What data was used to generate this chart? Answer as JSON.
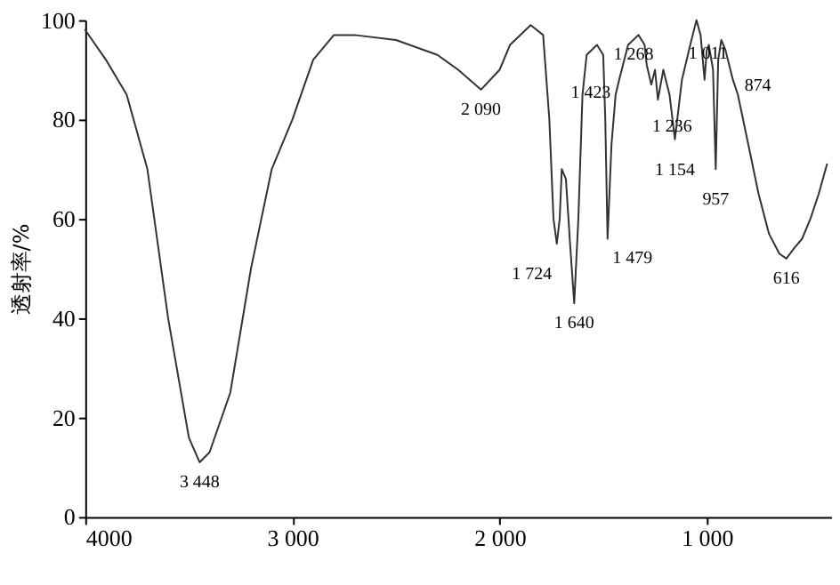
{
  "chart_data": {
    "type": "line",
    "ylabel": "透射率/%",
    "x": [
      4000,
      3900,
      3800,
      3700,
      3600,
      3500,
      3448,
      3400,
      3300,
      3200,
      3100,
      3000,
      2900,
      2800,
      2700,
      2500,
      2300,
      2200,
      2090,
      2000,
      1950,
      1850,
      1790,
      1760,
      1740,
      1724,
      1710,
      1700,
      1680,
      1660,
      1640,
      1620,
      1600,
      1580,
      1530,
      1500,
      1490,
      1479,
      1460,
      1440,
      1423,
      1380,
      1330,
      1300,
      1290,
      1268,
      1250,
      1236,
      1210,
      1180,
      1154,
      1120,
      1080,
      1050,
      1030,
      1011,
      1000,
      990,
      970,
      957,
      945,
      930,
      910,
      874,
      850,
      800,
      750,
      700,
      650,
      616,
      580,
      540,
      500,
      460,
      420
    ],
    "series": [
      {
        "color": "#333333",
        "values": [
          98,
          92,
          85,
          70,
          40,
          16,
          11,
          13,
          25,
          50,
          70,
          80,
          92,
          97,
          97,
          96,
          93,
          90,
          86,
          90,
          95,
          99,
          97,
          80,
          60,
          55,
          60,
          70,
          68,
          55,
          43,
          60,
          85,
          93,
          95,
          93,
          80,
          56,
          75,
          85,
          88,
          95,
          97,
          95,
          91,
          87,
          90,
          84,
          90,
          85,
          76,
          88,
          95,
          100,
          97,
          88,
          94,
          95,
          90,
          70,
          92,
          96,
          94,
          88,
          85,
          75,
          65,
          57,
          53,
          52,
          54,
          56,
          60,
          65,
          71
        ]
      }
    ],
    "xlim": [
      4000,
      400
    ],
    "xticks": [
      {
        "value": 4000,
        "label": "4000"
      },
      {
        "value": 3000,
        "label": "3 000"
      },
      {
        "value": 2000,
        "label": "2 000"
      },
      {
        "value": 1000,
        "label": "1 000"
      }
    ],
    "ylim": [
      0,
      100
    ],
    "yticks": [
      0,
      20,
      40,
      60,
      80,
      100
    ],
    "grid": false,
    "marker": "none",
    "line_style": "solid",
    "annotations": [
      {
        "text": "3 448",
        "x": 3448,
        "y": 11
      },
      {
        "text": "2 090",
        "x": 2090,
        "y": 86
      },
      {
        "text": "1 724",
        "x": 1724,
        "y": 55
      },
      {
        "text": "1 640",
        "x": 1640,
        "y": 43
      },
      {
        "text": "1 479",
        "x": 1479,
        "y": 56
      },
      {
        "text": "1 423",
        "x": 1423,
        "y": 88
      },
      {
        "text": "1 268",
        "x": 1268,
        "y": 87
      },
      {
        "text": "1 236",
        "x": 1236,
        "y": 84
      },
      {
        "text": "1 154",
        "x": 1154,
        "y": 76
      },
      {
        "text": "1 011",
        "x": 1011,
        "y": 88
      },
      {
        "text": "957",
        "x": 957,
        "y": 70
      },
      {
        "text": "874",
        "x": 874,
        "y": 88
      },
      {
        "text": "616",
        "x": 616,
        "y": 52
      }
    ]
  }
}
